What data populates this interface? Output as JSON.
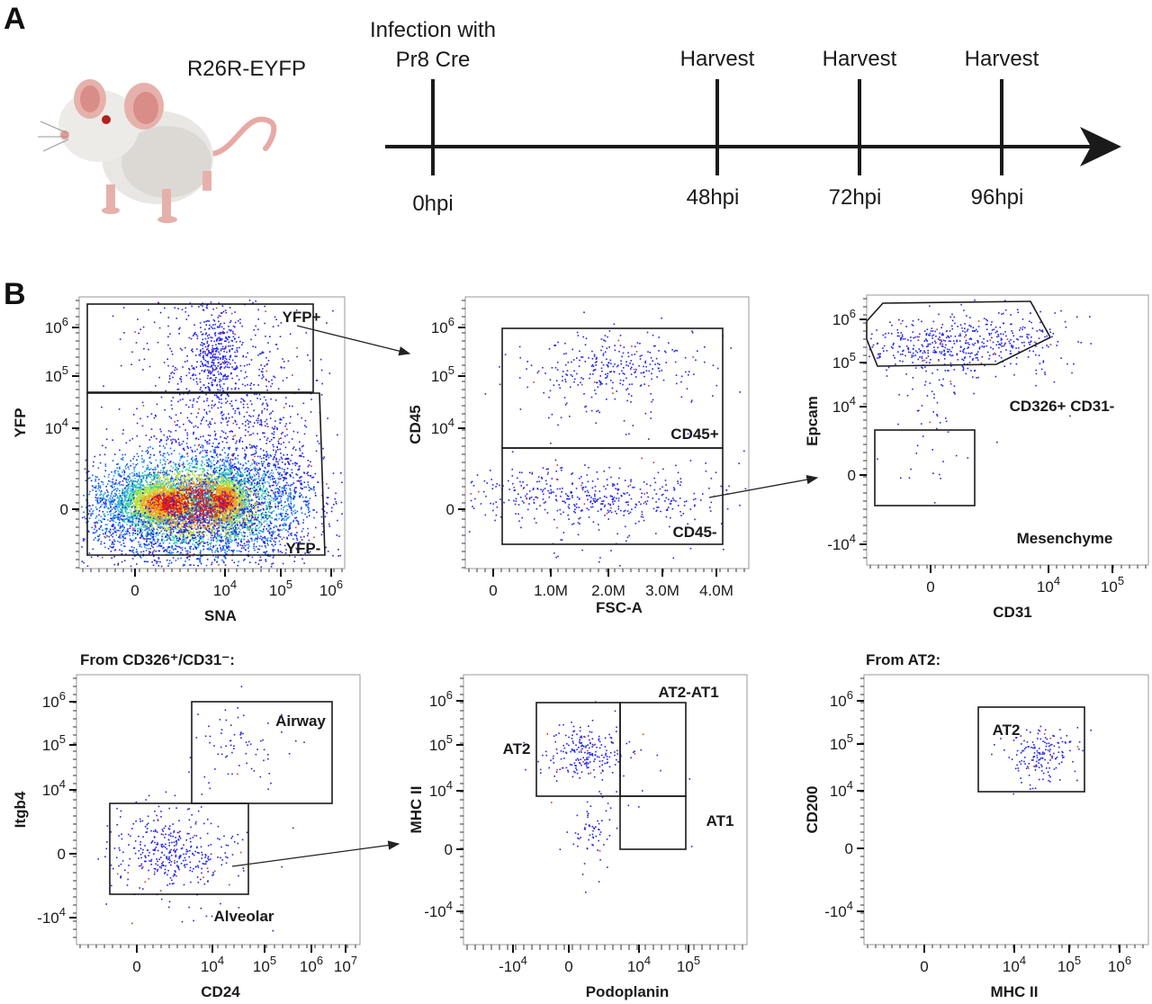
{
  "panel_a": {
    "label": "A",
    "strain": "R26R-EYFP",
    "timeline": [
      {
        "above": [
          "Infection with",
          "Pr8 Cre"
        ],
        "below": "0hpi"
      },
      {
        "above": [
          "Harvest"
        ],
        "below": "48hpi"
      },
      {
        "above": [
          "Harvest"
        ],
        "below": "72hpi"
      },
      {
        "above": [
          "Harvest"
        ],
        "below": "96hpi"
      }
    ],
    "icons": [
      "mouse-illustration",
      "timeline-arrow"
    ]
  },
  "panel_b": {
    "label": "B"
  },
  "colors": {
    "gate": "#1a1a1a",
    "low_density": "#1a1aff",
    "high_density": "#e02010",
    "frame": "#9a9a9a"
  },
  "chart_data": [
    {
      "type": "scatter",
      "title": "",
      "xlabel": "SNA",
      "ylabel": "YFP",
      "xscale": "biexponential",
      "yscale": "biexponential",
      "xticks": [
        "0",
        "10",
        "10",
        "10"
      ],
      "xtick_exp": [
        "",
        "4",
        "5",
        "6"
      ],
      "yticks": [
        "10",
        "10",
        "10",
        "0"
      ],
      "ytick_exp": [
        "6",
        "5",
        "4",
        ""
      ],
      "gates": [
        "YFP+",
        "YFP-"
      ],
      "density_coloring": true
    },
    {
      "type": "scatter",
      "title": "",
      "xlabel": "FSC-A",
      "ylabel": "CD45",
      "xscale": "linear",
      "yscale": "biexponential",
      "xticks": [
        "0",
        "1.0M",
        "2.0M",
        "3.0M",
        "4.0M"
      ],
      "xtick_exp": [
        "",
        "",
        "",
        "",
        ""
      ],
      "yticks": [
        "10",
        "10",
        "10",
        "0"
      ],
      "ytick_exp": [
        "6",
        "5",
        "4",
        ""
      ],
      "gates": [
        "CD45+",
        "CD45-"
      ],
      "density_coloring": true
    },
    {
      "type": "scatter",
      "title": "",
      "xlabel": "CD31",
      "ylabel": "Epcam",
      "xscale": "biexponential",
      "yscale": "biexponential",
      "xticks": [
        "0",
        "10",
        "10"
      ],
      "xtick_exp": [
        "",
        "4",
        "5"
      ],
      "yticks": [
        "10",
        "10",
        "10",
        "0",
        "-10"
      ],
      "ytick_exp": [
        "6",
        "5",
        "4",
        "",
        "4"
      ],
      "gates": [
        "CD326+ CD31-",
        "Mesenchyme"
      ],
      "density_coloring": true
    },
    {
      "type": "scatter",
      "title": "From CD326⁺/CD31⁻:",
      "xlabel": "CD24",
      "ylabel": "Itgb4",
      "xscale": "biexponential",
      "yscale": "biexponential",
      "xticks": [
        "0",
        "10",
        "10",
        "10",
        "10"
      ],
      "xtick_exp": [
        "",
        "4",
        "5",
        "6",
        "7"
      ],
      "yticks": [
        "10",
        "10",
        "10",
        "0",
        "-10"
      ],
      "ytick_exp": [
        "6",
        "5",
        "4",
        "",
        "4"
      ],
      "gates": [
        "Airway",
        "Alveolar"
      ],
      "density_coloring": true
    },
    {
      "type": "scatter",
      "title": "",
      "xlabel": "Podoplanin",
      "ylabel": "MHC II",
      "xscale": "biexponential",
      "yscale": "biexponential",
      "xticks": [
        "-10",
        "0",
        "10",
        "10"
      ],
      "xtick_exp": [
        "4",
        "",
        "4",
        "5"
      ],
      "yticks": [
        "10",
        "10",
        "10",
        "0",
        "-10"
      ],
      "ytick_exp": [
        "6",
        "5",
        "4",
        "",
        "4"
      ],
      "gates": [
        "AT2",
        "AT2-AT1",
        "AT1"
      ],
      "density_coloring": true
    },
    {
      "type": "scatter",
      "title": "From AT2:",
      "xlabel": "MHC II",
      "ylabel": "CD200",
      "xscale": "biexponential",
      "yscale": "biexponential",
      "xticks": [
        "0",
        "10",
        "10",
        "10"
      ],
      "xtick_exp": [
        "",
        "4",
        "5",
        "6"
      ],
      "yticks": [
        "10",
        "10",
        "10",
        "0",
        "-10"
      ],
      "ytick_exp": [
        "6",
        "5",
        "4",
        "",
        "4"
      ],
      "gates": [
        "AT2"
      ],
      "density_coloring": true
    }
  ]
}
